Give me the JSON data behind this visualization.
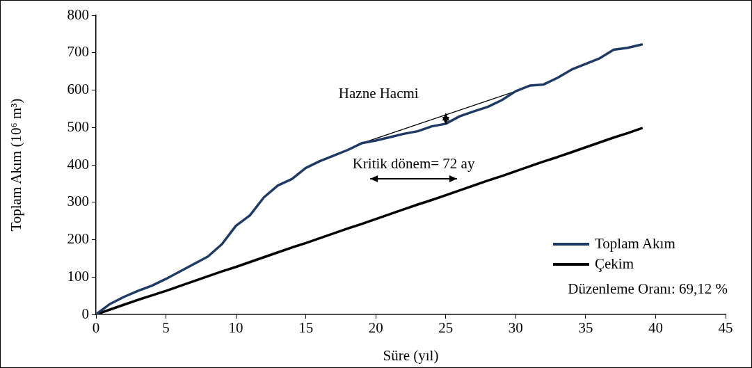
{
  "chart_data": {
    "type": "line",
    "xlabel": "Süre (yıl)",
    "ylabel": "Toplam Akım (10⁶ m³)",
    "x": [
      0,
      1,
      2,
      3,
      4,
      5,
      6,
      7,
      8,
      9,
      10,
      11,
      12,
      13,
      14,
      15,
      16,
      17,
      18,
      19,
      20,
      21,
      22,
      23,
      24,
      25,
      26,
      27,
      28,
      29,
      30,
      31,
      32,
      33,
      34,
      35,
      36,
      37,
      38,
      39
    ],
    "series": [
      {
        "name": "Toplam Akım",
        "color": "#1f3a64",
        "values": [
          0,
          28,
          47,
          63,
          77,
          95,
          115,
          135,
          155,
          188,
          237,
          265,
          313,
          345,
          362,
          392,
          410,
          425,
          440,
          458,
          465,
          474,
          483,
          490,
          503,
          510,
          530,
          543,
          555,
          573,
          597,
          612,
          615,
          633,
          655,
          670,
          685,
          708,
          713,
          722
        ]
      },
      {
        "name": "Çekim",
        "color": "#000000",
        "values": [
          0,
          13,
          26,
          39,
          51,
          63,
          76,
          89,
          102,
          115,
          127,
          140,
          153,
          166,
          179,
          191,
          204,
          217,
          230,
          242,
          255,
          268,
          281,
          294,
          306,
          319,
          332,
          345,
          358,
          370,
          383,
          396,
          409,
          421,
          434,
          447,
          460,
          473,
          485,
          498
        ]
      },
      {
        "type": "line",
        "color": "#000000",
        "x": [
          19,
          30
        ],
        "values": [
          458,
          597
        ]
      }
    ],
    "annotations": [
      "Hazne Hacmi",
      "Kritik dönem= 72 ay",
      "Düzenleme Oranı: 69,12 %"
    ],
    "xlim": [
      0,
      45
    ],
    "xticks": [
      0,
      5,
      10,
      15,
      20,
      25,
      30,
      35,
      40,
      45
    ],
    "ylim": [
      0,
      800
    ],
    "yticks": [
      0,
      100,
      200,
      300,
      400,
      500,
      600,
      700,
      800
    ],
    "grid": false,
    "legend": "bottom right",
    "marker": "none",
    "line_style": "solid"
  }
}
